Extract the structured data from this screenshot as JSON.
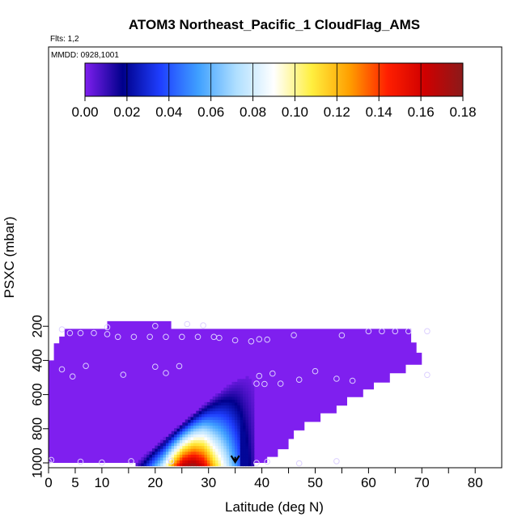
{
  "chart_data": {
    "type": "heatmap",
    "title": "ATOM3 Northeast_Pacific_1 CloudFlag_AMS",
    "annotations": [
      "Flts: 1,2",
      "MMDD: 0928,1001"
    ],
    "xlabel": "Latitude (deg N)",
    "ylabel": "PSXC (mbar)",
    "xlim": [
      -0.5,
      84
    ],
    "ylim": [
      1000,
      0
    ],
    "x_ticks": [
      0,
      5,
      10,
      20,
      30,
      40,
      50,
      60,
      70,
      80
    ],
    "x_ticks_unlabeled": [
      15,
      25,
      35,
      45,
      55,
      65,
      75
    ],
    "y_ticks": [
      200,
      400,
      600,
      800,
      1000
    ],
    "colorbar": {
      "ticks": [
        0.0,
        0.02,
        0.04,
        0.06,
        0.08,
        0.1,
        0.12,
        0.14,
        0.16,
        0.18
      ],
      "tick_labels": [
        "0.00",
        "0.02",
        "0.04",
        "0.06",
        "0.08",
        "0.10",
        "0.12",
        "0.14",
        "0.16",
        "0.18"
      ],
      "range": [
        0,
        0.18
      ],
      "stops": [
        "#7f1fef",
        "#00008b",
        "#1f3fff",
        "#3fa0ff",
        "#afdfff",
        "#ffffff",
        "#ffef3f",
        "#ff9f00",
        "#ff1f00",
        "#cf0000",
        "#8b1a1a"
      ]
    },
    "background_value": 0.0,
    "background_region": [
      [
        17,
        170
      ],
      [
        23,
        170
      ],
      [
        23,
        215
      ],
      [
        68,
        215
      ],
      [
        68,
        295
      ],
      [
        69,
        295
      ],
      [
        69,
        355
      ],
      [
        70,
        355
      ],
      [
        70,
        425
      ],
      [
        67,
        425
      ],
      [
        67,
        475
      ],
      [
        64,
        475
      ],
      [
        64,
        530
      ],
      [
        61,
        530
      ],
      [
        61,
        570
      ],
      [
        59,
        570
      ],
      [
        59,
        615
      ],
      [
        56,
        615
      ],
      [
        56,
        665
      ],
      [
        54,
        665
      ],
      [
        54,
        710
      ],
      [
        51,
        710
      ],
      [
        51,
        760
      ],
      [
        48,
        760
      ],
      [
        48,
        810
      ],
      [
        46,
        810
      ],
      [
        46,
        860
      ],
      [
        45,
        860
      ],
      [
        45,
        920
      ],
      [
        43,
        920
      ],
      [
        43,
        965
      ],
      [
        41,
        965
      ],
      [
        41,
        1000
      ],
      [
        0,
        1000
      ],
      [
        0,
        400
      ],
      [
        1,
        400
      ],
      [
        1,
        300
      ],
      [
        2,
        300
      ],
      [
        2,
        260
      ],
      [
        3,
        260
      ],
      [
        3,
        215
      ],
      [
        11,
        215
      ],
      [
        11,
        170
      ]
    ],
    "cloud_layer": {
      "x_range": [
        15.8,
        38.5
      ],
      "y_range": [
        390,
        1000
      ],
      "bottom_vmax": [
        0,
        0.02,
        0.05,
        0.08,
        0.13,
        0.17,
        0.18,
        0.16,
        0.12,
        0.09,
        0.06,
        0.03,
        0.01
      ]
    },
    "scatter_points": [
      [
        11,
        205
      ],
      [
        20,
        198
      ],
      [
        26,
        187
      ],
      [
        29,
        195
      ],
      [
        2.5,
        218
      ],
      [
        4,
        240
      ],
      [
        6,
        240
      ],
      [
        8.5,
        240
      ],
      [
        11,
        246
      ],
      [
        13,
        262
      ],
      [
        16,
        262
      ],
      [
        19,
        262
      ],
      [
        22,
        262
      ],
      [
        25,
        262
      ],
      [
        28,
        262
      ],
      [
        31,
        262
      ],
      [
        32,
        268
      ],
      [
        35,
        282
      ],
      [
        38,
        288
      ],
      [
        39.5,
        276
      ],
      [
        41,
        278
      ],
      [
        46,
        252
      ],
      [
        55,
        253
      ],
      [
        60,
        229
      ],
      [
        62.5,
        229
      ],
      [
        65,
        229
      ],
      [
        67.5,
        229
      ],
      [
        71,
        229
      ],
      [
        7,
        432
      ],
      [
        20,
        437
      ],
      [
        24.5,
        433
      ],
      [
        -0.5,
        448
      ],
      [
        2.5,
        452
      ],
      [
        4.5,
        494
      ],
      [
        14,
        484
      ],
      [
        22,
        474
      ],
      [
        39.5,
        491
      ],
      [
        42,
        477
      ],
      [
        50,
        463
      ],
      [
        47,
        513
      ],
      [
        54,
        507
      ],
      [
        57,
        519
      ],
      [
        71,
        485
      ],
      [
        39,
        536
      ],
      [
        40.5,
        538
      ],
      [
        43.5,
        536
      ],
      [
        0,
        990
      ],
      [
        0.5,
        983
      ],
      [
        6,
        993
      ],
      [
        10,
        998
      ],
      [
        15.5,
        990
      ],
      [
        23,
        990
      ],
      [
        39,
        1000
      ],
      [
        41,
        993
      ],
      [
        47,
        1003
      ],
      [
        54,
        990
      ]
    ],
    "marker": {
      "type": "arrow-down",
      "x": 35,
      "y_from": 965,
      "y_to": 1005
    }
  }
}
